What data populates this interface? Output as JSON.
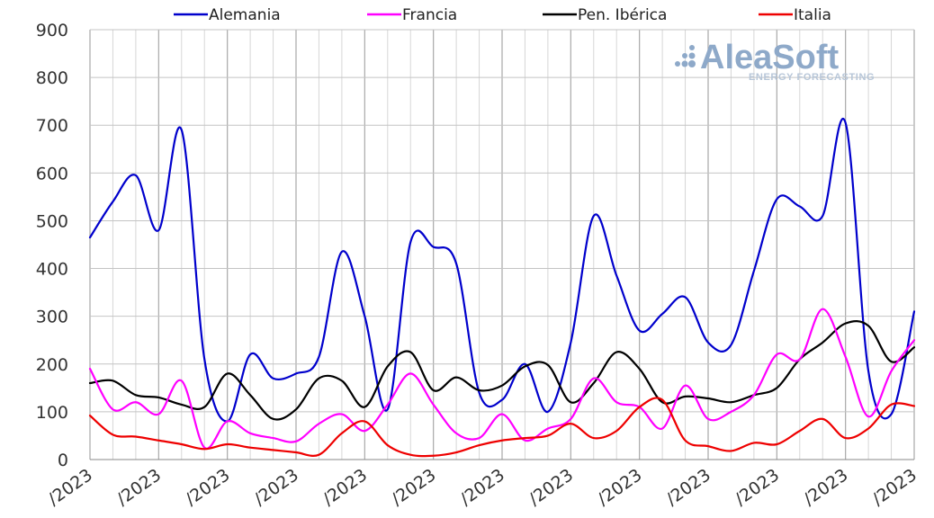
{
  "logo": {
    "name": "AleaSoft",
    "tagline": "ENERGY FORECASTING"
  },
  "chart_data": {
    "type": "line",
    "title": "",
    "xlabel": "",
    "ylabel": "",
    "ylim": [
      0,
      900
    ],
    "yticks": [
      0,
      100,
      200,
      300,
      400,
      500,
      600,
      700,
      800,
      900
    ],
    "x_count": 37,
    "date_tick_labels": [
      "/2023",
      "/2023",
      "/2023",
      "/2023",
      "/2023",
      "/2023",
      "/2023",
      "/2023",
      "/2023",
      "/2023",
      "/2023",
      "/2023",
      "/2023"
    ],
    "grid": true,
    "legend_position": "top",
    "series": [
      {
        "name": "Alemania",
        "color": "#0000cc",
        "values": [
          465,
          540,
          595,
          480,
          690,
          210,
          80,
          220,
          170,
          180,
          215,
          435,
          300,
          105,
          455,
          445,
          410,
          140,
          125,
          200,
          100,
          245,
          510,
          385,
          270,
          305,
          340,
          245,
          240,
          395,
          545,
          530,
          510,
          705,
          185,
          95,
          310
        ]
      },
      {
        "name": "Francia",
        "color": "#ff00ff",
        "values": [
          190,
          105,
          120,
          95,
          165,
          25,
          80,
          55,
          45,
          38,
          75,
          95,
          60,
          115,
          180,
          115,
          55,
          45,
          95,
          40,
          65,
          85,
          170,
          120,
          110,
          65,
          155,
          85,
          100,
          135,
          220,
          210,
          315,
          215,
          90,
          185,
          250
        ]
      },
      {
        "name": "Pen. Ibérica",
        "color": "#000000",
        "values": [
          160,
          165,
          135,
          130,
          115,
          110,
          180,
          135,
          85,
          105,
          170,
          165,
          110,
          195,
          225,
          145,
          172,
          145,
          155,
          195,
          198,
          120,
          160,
          225,
          190,
          120,
          132,
          128,
          120,
          135,
          150,
          210,
          245,
          285,
          280,
          205,
          235
        ]
      },
      {
        "name": "Italia",
        "color": "#ee0000",
        "values": [
          92,
          52,
          48,
          40,
          32,
          22,
          32,
          25,
          20,
          15,
          10,
          55,
          80,
          30,
          10,
          8,
          15,
          30,
          40,
          45,
          50,
          75,
          45,
          60,
          110,
          125,
          40,
          28,
          18,
          35,
          32,
          60,
          85,
          45,
          65,
          115,
          112
        ]
      }
    ]
  }
}
